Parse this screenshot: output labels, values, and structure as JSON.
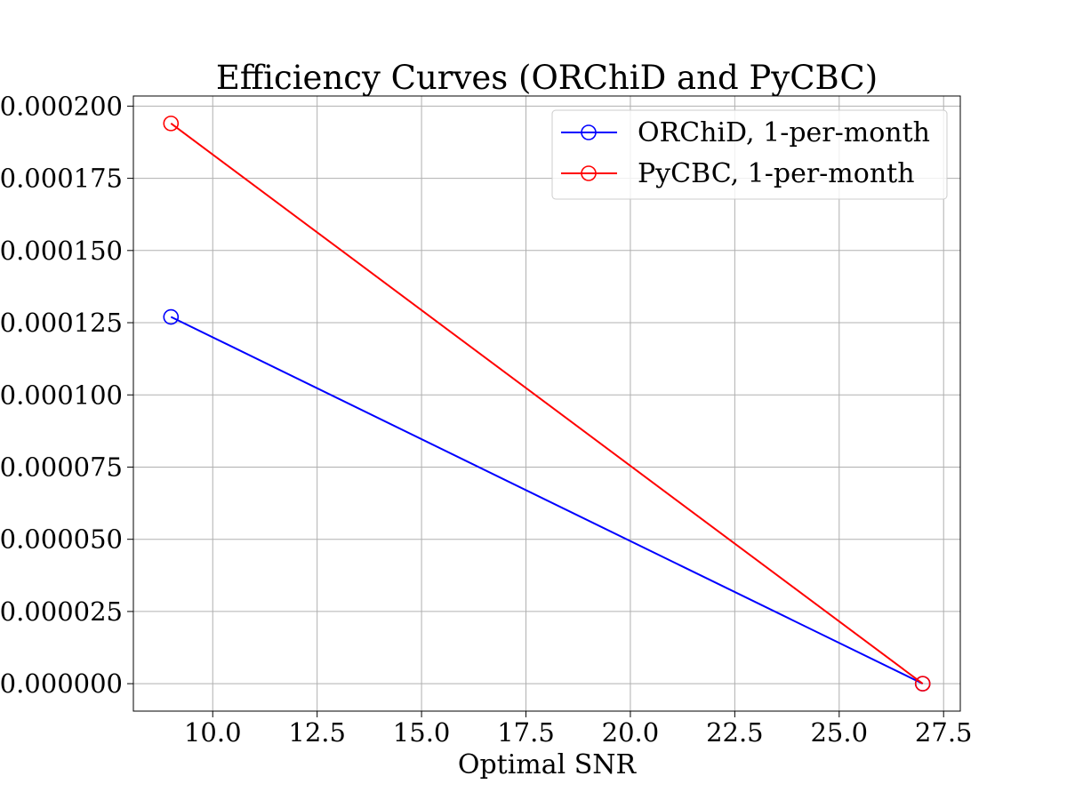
{
  "chart_data": {
    "type": "line",
    "title": "Efficiency Curves (ORChiD and PyCBC)",
    "xlabel": "Optimal SNR",
    "ylabel": "",
    "xlim": [
      8.1,
      27.9
    ],
    "ylim": [
      -9.5e-06,
      0.0002035
    ],
    "xticks": [
      10.0,
      12.5,
      15.0,
      17.5,
      20.0,
      22.5,
      25.0,
      27.5
    ],
    "xtick_labels": [
      "10.0",
      "12.5",
      "15.0",
      "17.5",
      "20.0",
      "22.5",
      "25.0",
      "27.5"
    ],
    "yticks": [
      0.0,
      2.5e-05,
      5e-05,
      7.5e-05,
      0.0001,
      0.000125,
      0.00015,
      0.000175,
      0.0002
    ],
    "ytick_labels": [
      "0.000000",
      "0.000025",
      "0.000050",
      "0.000075",
      "0.000100",
      "0.000125",
      "0.000150",
      "0.000175",
      "0.000200"
    ],
    "grid": true,
    "legend_position": "top-right",
    "series": [
      {
        "name": "ORChiD, 1-per-month",
        "color": "#0000ff",
        "marker": "open-circle",
        "x": [
          9.0,
          27.0
        ],
        "y": [
          0.000127,
          0.0
        ]
      },
      {
        "name": "PyCBC, 1-per-month",
        "color": "#ff0000",
        "marker": "open-circle",
        "x": [
          9.0,
          27.0
        ],
        "y": [
          0.000194,
          0.0
        ]
      }
    ]
  }
}
